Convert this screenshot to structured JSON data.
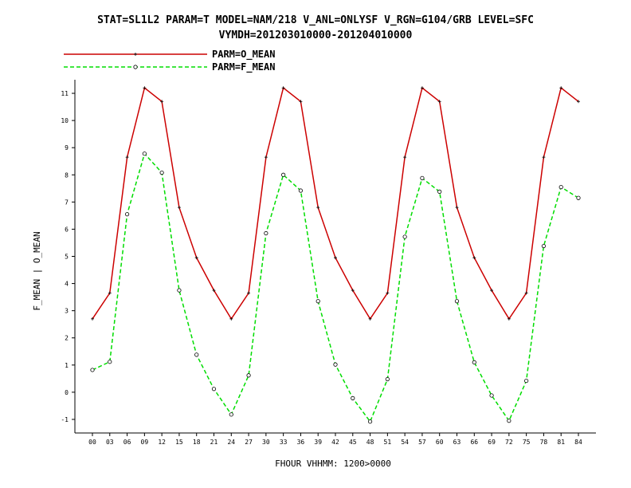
{
  "chart_data": {
    "type": "line",
    "title": "STAT=SL1L2 PARAM=T MODEL=NAM/218 V_ANL=ONLYSF V_RGN=G104/GRB LEVEL=SFC",
    "subtitle": "VYMDH=201203010000-201204010000",
    "xlabel": "FHOUR  VHHMM: 1200>0000",
    "ylabel": "F_MEAN | O_MEAN",
    "x": [
      "00",
      "03",
      "06",
      "09",
      "12",
      "15",
      "18",
      "21",
      "24",
      "27",
      "30",
      "33",
      "36",
      "39",
      "42",
      "45",
      "48",
      "51",
      "54",
      "57",
      "60",
      "63",
      "66",
      "69",
      "72",
      "75",
      "78",
      "81",
      "84"
    ],
    "y_ticks": [
      -1,
      0,
      1,
      2,
      3,
      4,
      5,
      6,
      7,
      8,
      9,
      10,
      11
    ],
    "ylim": [
      -1.5,
      11.5
    ],
    "legend_position": "top-left",
    "grid": false,
    "series": [
      {
        "name": "PARM=O_MEAN",
        "color": "#cc0000",
        "style": "solid",
        "marker": "plus",
        "values": [
          2.7,
          3.65,
          8.65,
          11.2,
          10.7,
          6.8,
          4.95,
          3.75,
          2.7,
          3.65,
          8.65,
          11.2,
          10.7,
          6.8,
          4.95,
          3.75,
          2.7,
          3.65,
          8.65,
          11.2,
          10.7,
          6.8,
          4.95,
          3.75,
          2.7,
          3.65,
          8.65,
          11.2,
          10.7
        ]
      },
      {
        "name": "PARM=F_MEAN",
        "color": "#00dd00",
        "style": "dashed",
        "marker": "circle",
        "values": [
          0.82,
          1.12,
          6.55,
          8.78,
          8.08,
          3.75,
          1.38,
          0.12,
          -0.82,
          0.62,
          5.85,
          8.0,
          7.42,
          3.35,
          1.02,
          -0.22,
          -1.08,
          0.48,
          5.72,
          7.88,
          7.38,
          3.35,
          1.1,
          -0.12,
          -1.05,
          0.42,
          5.38,
          7.55,
          7.15
        ]
      }
    ]
  }
}
